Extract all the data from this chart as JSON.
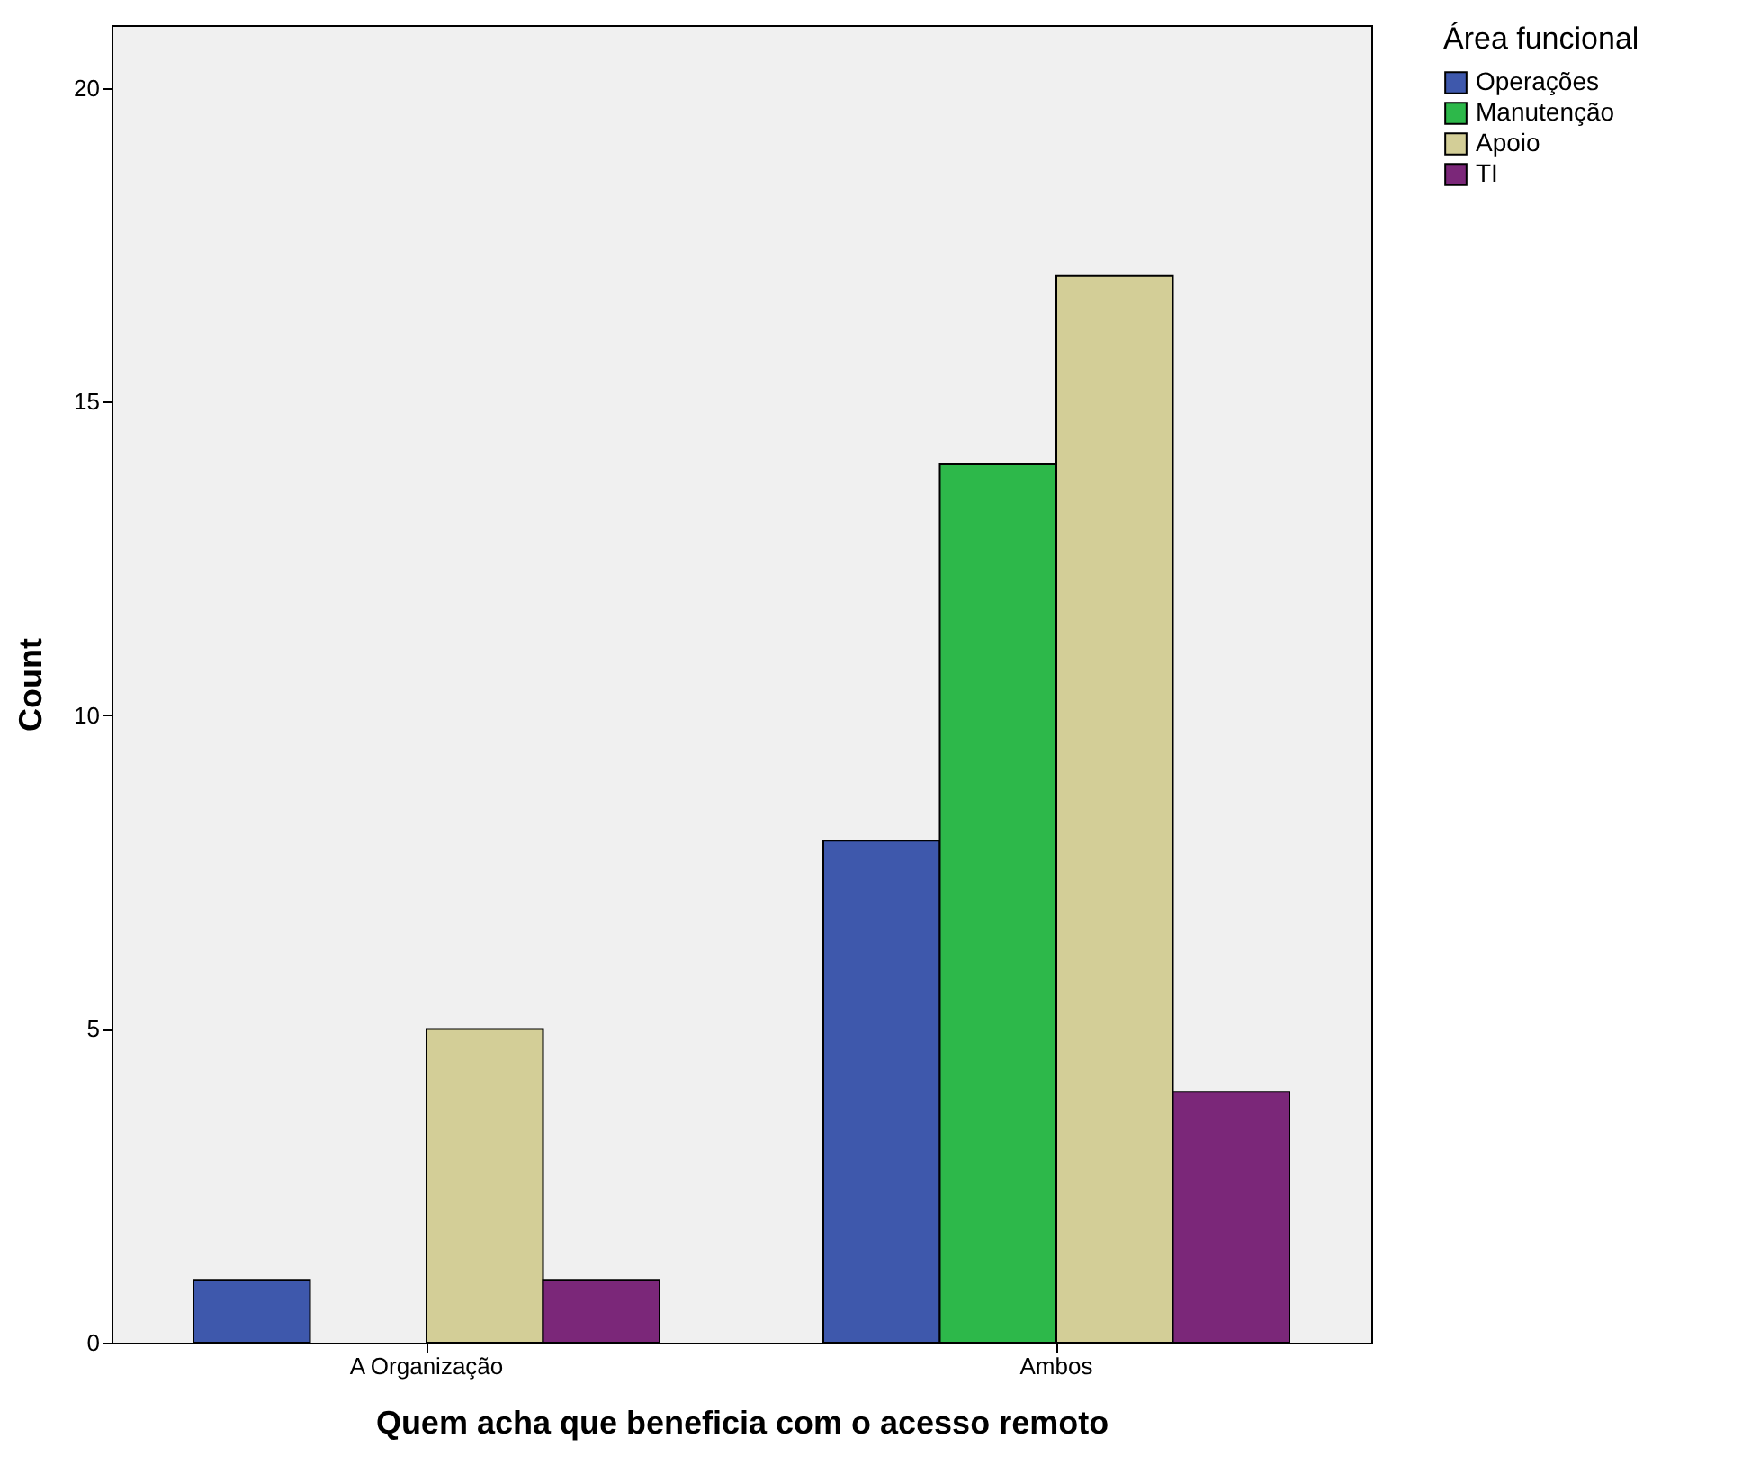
{
  "chart_data": {
    "type": "bar",
    "xlabel": "Quem acha que beneficia com o acesso remoto",
    "ylabel": "Count",
    "legend_title": "Área funcional",
    "categories": [
      "A Organização",
      "Ambos"
    ],
    "series": [
      {
        "name": "Operações",
        "color": "#3e58ac",
        "values": [
          1,
          8
        ]
      },
      {
        "name": "Manutenção",
        "color": "#2db84a",
        "values": [
          null,
          14
        ]
      },
      {
        "name": "Apoio",
        "color": "#d3ce97",
        "values": [
          5,
          17
        ]
      },
      {
        "name": "TI",
        "color": "#7b2779",
        "values": [
          1,
          4
        ]
      }
    ],
    "ylim": [
      0,
      21
    ],
    "yticks": [
      0,
      5,
      10,
      15,
      20
    ],
    "grid": false,
    "legend": "top right"
  }
}
